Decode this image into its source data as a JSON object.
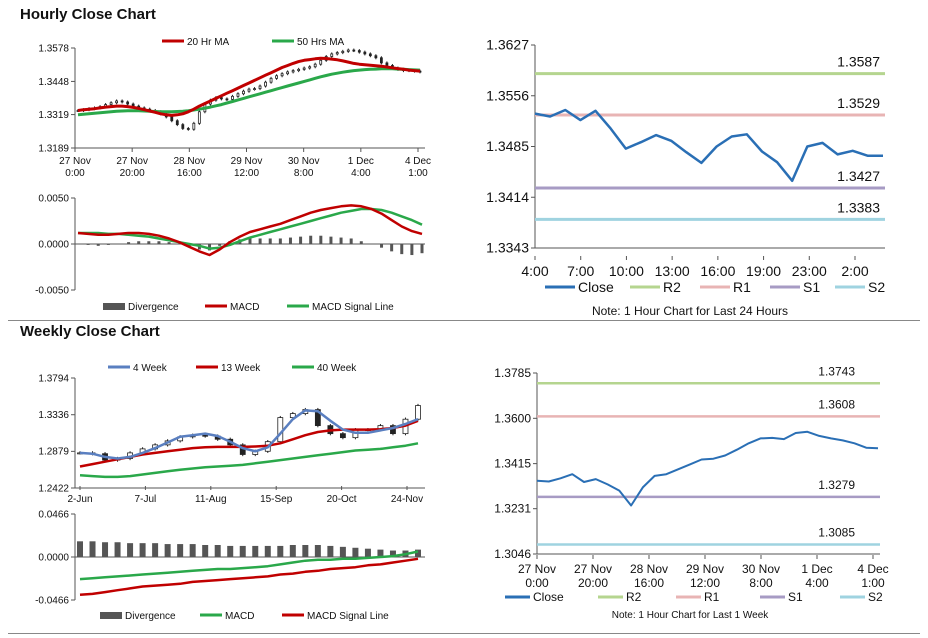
{
  "hourly_title": "Hourly Close Chart",
  "weekly_title": "Weekly Close Chart",
  "chart_data": [
    {
      "type": "line",
      "id": "hourly_price",
      "legend": [
        "20 Hr MA",
        "50 Hrs MA"
      ],
      "legend_placement": "top",
      "colors": {
        "ma20": "#c00000",
        "ma50": "#2aa84a",
        "candle": "#222222"
      },
      "y_ticks": [
        "1.3578",
        "1.3448",
        "1.3319",
        "1.3189"
      ],
      "ylim": [
        1.3189,
        1.3578
      ],
      "x_ticks": [
        [
          "27 Nov",
          "0:00"
        ],
        [
          "27 Nov",
          "20:00"
        ],
        [
          "28 Nov",
          "16:00"
        ],
        [
          "29 Nov",
          "12:00"
        ],
        [
          "30 Nov",
          "8:00"
        ],
        [
          "1 Dec",
          "4:00"
        ],
        [
          "4 Dec",
          "1:00"
        ]
      ],
      "candles": [
        1.3335,
        1.3338,
        1.3342,
        1.3345,
        1.335,
        1.3358,
        1.3365,
        1.3372,
        1.3368,
        1.336,
        1.3352,
        1.3345,
        1.334,
        1.3335,
        1.333,
        1.3322,
        1.331,
        1.3295,
        1.328,
        1.3265,
        1.3262,
        1.3285,
        1.333,
        1.336,
        1.3375,
        1.3385,
        1.338,
        1.3378,
        1.339,
        1.34,
        1.341,
        1.3418,
        1.342,
        1.343,
        1.3445,
        1.346,
        1.347,
        1.3478,
        1.3485,
        1.349,
        1.3495,
        1.35,
        1.3505,
        1.3515,
        1.353,
        1.3545,
        1.3555,
        1.356,
        1.3565,
        1.357,
        1.3568,
        1.3562,
        1.3555,
        1.3548,
        1.354,
        1.352,
        1.351,
        1.35,
        1.3495,
        1.349,
        1.3492,
        1.3488,
        1.3485
      ],
      "ma20": [
        1.3335,
        1.3338,
        1.334,
        1.3342,
        1.3345,
        1.3348,
        1.335,
        1.3352,
        1.3352,
        1.335,
        1.3347,
        1.3343,
        1.3338,
        1.3333,
        1.3328,
        1.3322,
        1.3318,
        1.3316,
        1.3318,
        1.3322,
        1.333,
        1.334,
        1.3352,
        1.3362,
        1.3372,
        1.3382,
        1.3392,
        1.3402,
        1.3412,
        1.3422,
        1.3432,
        1.3442,
        1.3452,
        1.3462,
        1.3472,
        1.3482,
        1.3492,
        1.3502,
        1.351,
        1.3518,
        1.3525,
        1.353,
        1.3533,
        1.3536,
        1.3538,
        1.3537,
        1.3535,
        1.3532,
        1.3528,
        1.3523,
        1.3518,
        1.3515,
        1.3513,
        1.3511,
        1.3509,
        1.3507,
        1.3504,
        1.3501,
        1.3498,
        1.3495,
        1.3492,
        1.349,
        1.3488
      ],
      "ma50": [
        1.3318,
        1.332,
        1.3322,
        1.3324,
        1.3326,
        1.3328,
        1.333,
        1.3332,
        1.3333,
        1.3334,
        1.3334,
        1.3334,
        1.3333,
        1.3332,
        1.3331,
        1.333,
        1.333,
        1.333,
        1.3331,
        1.3332,
        1.3334,
        1.3337,
        1.334,
        1.3344,
        1.3348,
        1.3353,
        1.3358,
        1.3364,
        1.337,
        1.3376,
        1.3382,
        1.3388,
        1.3394,
        1.34,
        1.3406,
        1.3412,
        1.3418,
        1.3424,
        1.343,
        1.3436,
        1.3442,
        1.3448,
        1.3454,
        1.346,
        1.3466,
        1.3471,
        1.3476,
        1.348,
        1.3484,
        1.3487,
        1.349,
        1.3492,
        1.3494,
        1.3495,
        1.3496,
        1.3497,
        1.3497,
        1.3497,
        1.3496,
        1.3495,
        1.3494,
        1.3493,
        1.3492
      ]
    },
    {
      "type": "line",
      "id": "hourly_macd",
      "legend": [
        "Divergence",
        "MACD",
        "MACD Signal Line"
      ],
      "legend_placement": "bottom",
      "colors": {
        "divergence": "#555555",
        "macd": "#c00000",
        "signal": "#2aa84a"
      },
      "y_ticks": [
        "0.0050",
        "0.0000",
        "-0.0050"
      ],
      "ylim": [
        -0.005,
        0.005
      ],
      "macd": [
        0.0012,
        0.0011,
        0.001,
        0.001,
        0.0011,
        0.0012,
        0.0012,
        0.0011,
        0.0009,
        0.0006,
        0.0002,
        -0.0003,
        -0.0008,
        -0.0012,
        -0.0006,
        0.0002,
        0.0008,
        0.0013,
        0.0016,
        0.0019,
        0.0022,
        0.0026,
        0.003,
        0.0034,
        0.0037,
        0.0039,
        0.0041,
        0.0042,
        0.0041,
        0.0038,
        0.0033,
        0.0026,
        0.0019,
        0.0014,
        0.0011
      ],
      "signal": [
        0.0012,
        0.0012,
        0.0012,
        0.0011,
        0.0011,
        0.001,
        0.0009,
        0.0008,
        0.0006,
        0.0004,
        0.0002,
        0.0,
        -0.0002,
        -0.0005,
        -0.0004,
        -0.0001,
        0.0003,
        0.0007,
        0.001,
        0.0013,
        0.0016,
        0.0019,
        0.0022,
        0.0025,
        0.0028,
        0.0031,
        0.0034,
        0.0036,
        0.0038,
        0.0038,
        0.0037,
        0.0034,
        0.003,
        0.0026,
        0.0021
      ],
      "divergence": [
        0.0,
        -0.0001,
        -0.0002,
        -0.0001,
        0.0,
        0.0002,
        0.0003,
        0.0003,
        0.0003,
        0.0002,
        0.0,
        -0.0003,
        -0.0006,
        -0.0007,
        -0.0002,
        0.0003,
        0.0005,
        0.0006,
        0.0006,
        0.0006,
        0.0006,
        0.0007,
        0.0008,
        0.0009,
        0.0009,
        0.0008,
        0.0007,
        0.0006,
        0.0003,
        0.0,
        -0.0004,
        -0.0008,
        -0.0011,
        -0.0012,
        -0.001
      ]
    },
    {
      "type": "line",
      "id": "hourly_sr",
      "y_ticks": [
        "1.3627",
        "1.3556",
        "1.3485",
        "1.3414",
        "1.3343"
      ],
      "ylim": [
        1.3343,
        1.3627
      ],
      "x_ticks": [
        "4:00",
        "7:00",
        "10:00",
        "13:00",
        "16:00",
        "19:00",
        "23:00",
        "2:00"
      ],
      "close": [
        1.3531,
        1.3527,
        1.3536,
        1.3522,
        1.3535,
        1.351,
        1.3482,
        1.3491,
        1.3501,
        1.3493,
        1.3477,
        1.3462,
        1.3485,
        1.3499,
        1.3502,
        1.3478,
        1.3463,
        1.3437,
        1.3485,
        1.349,
        1.3474,
        1.3479,
        1.3472,
        1.3472
      ],
      "levels": [
        {
          "name": "R2",
          "value": 1.3587,
          "label": "1.3587",
          "color": "#b5d58f"
        },
        {
          "name": "R1",
          "value": 1.3529,
          "label": "1.3529",
          "color": "#e8b4b4"
        },
        {
          "name": "S1",
          "value": 1.3427,
          "label": "1.3427",
          "color": "#a79bc4"
        },
        {
          "name": "S2",
          "value": 1.3383,
          "label": "1.3383",
          "color": "#9fd3e0"
        }
      ],
      "close_color": "#2a6fb5",
      "legend": [
        "Close",
        "R2",
        "R1",
        "S1",
        "S2"
      ],
      "legend_placement": "bottom",
      "note": "Note: 1 Hour Chart for Last 24 Hours"
    },
    {
      "type": "line",
      "id": "weekly_price",
      "legend": [
        "4 Week",
        "13 Week",
        "40 Week"
      ],
      "legend_placement": "top",
      "colors": {
        "ma4": "#5a7fc0",
        "ma13": "#c00000",
        "ma40": "#2aa84a",
        "candle": "#222222"
      },
      "y_ticks": [
        "1.3794",
        "1.3336",
        "1.2879",
        "1.2422"
      ],
      "ylim": [
        1.2422,
        1.3794
      ],
      "x_ticks": [
        "2-Jun",
        "7-Jul",
        "11-Aug",
        "15-Sep",
        "20-Oct",
        "24-Nov"
      ],
      "candles": [
        1.286,
        1.285,
        1.277,
        1.279,
        1.286,
        1.291,
        1.296,
        1.301,
        1.306,
        1.308,
        1.307,
        1.303,
        1.296,
        1.284,
        1.288,
        1.3,
        1.33,
        1.335,
        1.34,
        1.32,
        1.31,
        1.305,
        1.315,
        1.315,
        1.32,
        1.31,
        1.328,
        1.345
      ],
      "ma4": [
        1.286,
        1.285,
        1.281,
        1.279,
        1.281,
        1.286,
        1.292,
        1.299,
        1.306,
        1.308,
        1.31,
        1.307,
        1.3,
        1.292,
        1.288,
        1.293,
        1.31,
        1.328,
        1.339,
        1.338,
        1.326,
        1.315,
        1.311,
        1.311,
        1.314,
        1.317,
        1.322,
        1.328
      ],
      "ma13": [
        1.269,
        1.272,
        1.275,
        1.278,
        1.281,
        1.284,
        1.286,
        1.288,
        1.29,
        1.292,
        1.293,
        1.2935,
        1.2935,
        1.2935,
        1.294,
        1.295,
        1.298,
        1.303,
        1.308,
        1.312,
        1.314,
        1.315,
        1.315,
        1.315,
        1.3155,
        1.317,
        1.32,
        1.326
      ],
      "ma40": [
        1.258,
        1.257,
        1.256,
        1.256,
        1.257,
        1.259,
        1.261,
        1.263,
        1.265,
        1.2665,
        1.268,
        1.269,
        1.27,
        1.271,
        1.273,
        1.275,
        1.277,
        1.279,
        1.281,
        1.283,
        1.285,
        1.287,
        1.289,
        1.29,
        1.291,
        1.293,
        1.295,
        1.298
      ]
    },
    {
      "type": "line",
      "id": "weekly_macd",
      "legend": [
        "Divergence",
        "MACD",
        "MACD Signal Line"
      ],
      "legend_placement": "bottom",
      "colors": {
        "divergence": "#555555",
        "macd": "#2aa84a",
        "signal": "#c00000"
      },
      "y_ticks": [
        "0.0466",
        "0.0000",
        "-0.0466"
      ],
      "ylim": [
        -0.0466,
        0.0466
      ],
      "macd": [
        -0.024,
        -0.023,
        -0.022,
        -0.021,
        -0.02,
        -0.019,
        -0.018,
        -0.017,
        -0.016,
        -0.015,
        -0.014,
        -0.013,
        -0.013,
        -0.012,
        -0.011,
        -0.01,
        -0.008,
        -0.006,
        -0.004,
        -0.003,
        -0.003,
        -0.002,
        -0.002,
        -0.001,
        0.0,
        0.001,
        0.003,
        0.006
      ],
      "signal": [
        -0.041,
        -0.04,
        -0.038,
        -0.036,
        -0.034,
        -0.032,
        -0.031,
        -0.03,
        -0.029,
        -0.027,
        -0.026,
        -0.025,
        -0.024,
        -0.023,
        -0.022,
        -0.021,
        -0.019,
        -0.018,
        -0.016,
        -0.015,
        -0.013,
        -0.012,
        -0.011,
        -0.009,
        -0.008,
        -0.006,
        -0.004,
        -0.002
      ],
      "divergence": [
        0.017,
        0.017,
        0.016,
        0.016,
        0.015,
        0.015,
        0.015,
        0.014,
        0.014,
        0.014,
        0.013,
        0.013,
        0.012,
        0.012,
        0.012,
        0.012,
        0.012,
        0.013,
        0.013,
        0.013,
        0.012,
        0.011,
        0.01,
        0.009,
        0.008,
        0.007,
        0.007,
        0.008
      ]
    },
    {
      "type": "line",
      "id": "weekly_sr",
      "y_ticks": [
        "1.3785",
        "1.3600",
        "1.3415",
        "1.3231",
        "1.3046"
      ],
      "ylim": [
        1.3046,
        1.3785
      ],
      "x_ticks": [
        [
          "27 Nov",
          "0:00"
        ],
        [
          "27 Nov",
          "20:00"
        ],
        [
          "28 Nov",
          "16:00"
        ],
        [
          "29 Nov",
          "12:00"
        ],
        [
          "30 Nov",
          "8:00"
        ],
        [
          "1 Dec",
          "4:00"
        ],
        [
          "4 Dec",
          "1:00"
        ]
      ],
      "close": [
        1.3345,
        1.3342,
        1.3355,
        1.3372,
        1.334,
        1.3352,
        1.333,
        1.3305,
        1.3244,
        1.3318,
        1.3365,
        1.3372,
        1.3392,
        1.3412,
        1.3432,
        1.3435,
        1.3448,
        1.3472,
        1.3498,
        1.3518,
        1.352,
        1.3515,
        1.354,
        1.3545,
        1.3528,
        1.3518,
        1.351,
        1.3498,
        1.348,
        1.3478
      ],
      "levels": [
        {
          "name": "R2",
          "value": 1.3743,
          "label": "1.3743",
          "color": "#b5d58f"
        },
        {
          "name": "R1",
          "value": 1.3608,
          "label": "1.3608",
          "color": "#e8b4b4"
        },
        {
          "name": "S1",
          "value": 1.3279,
          "label": "1.3279",
          "color": "#a79bc4"
        },
        {
          "name": "S2",
          "value": 1.3085,
          "label": "1.3085",
          "color": "#9fd3e0"
        }
      ],
      "close_color": "#2a6fb5",
      "legend": [
        "Close",
        "R2",
        "R1",
        "S1",
        "S2"
      ],
      "legend_placement": "bottom",
      "note": "Note: 1 Hour Chart for Last 1 Week"
    }
  ]
}
